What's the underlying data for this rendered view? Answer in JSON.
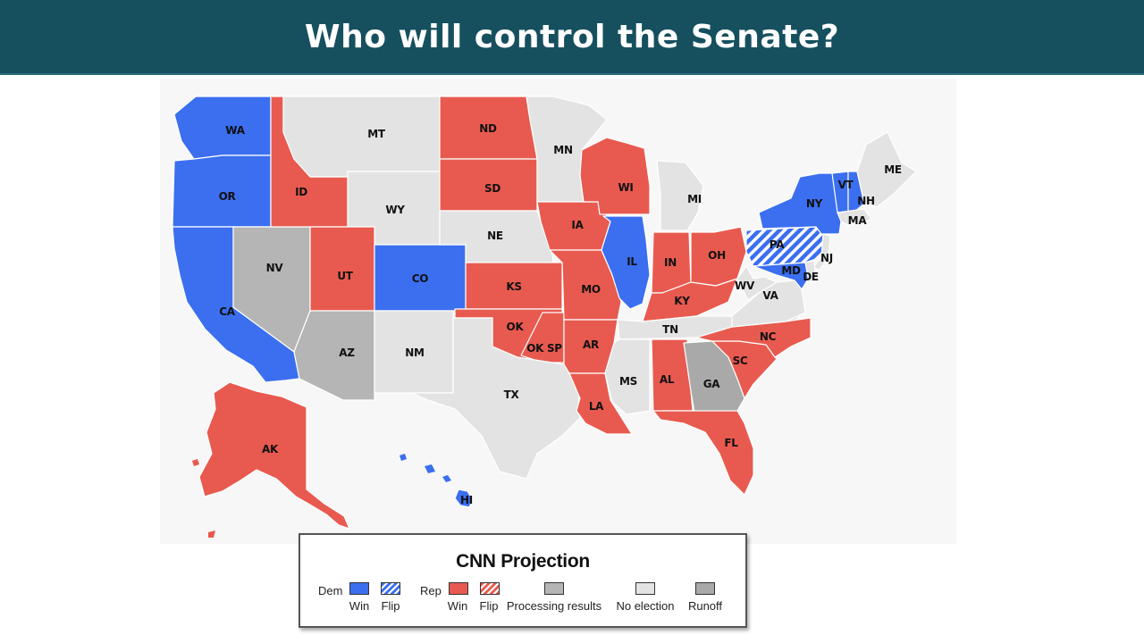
{
  "header": {
    "title": "Who will control the Senate?",
    "background": "#16505f"
  },
  "colors": {
    "dem_win": "#3b6ff0",
    "rep_win": "#e85a4f",
    "processing": "#b5b5b5",
    "no_election": "#e3e3e3",
    "runoff": "#a9a9a9"
  },
  "map": {
    "states": [
      {
        "code": "WA",
        "status": "dem_win"
      },
      {
        "code": "OR",
        "status": "dem_win"
      },
      {
        "code": "CA",
        "status": "dem_win"
      },
      {
        "code": "NV",
        "status": "processing"
      },
      {
        "code": "ID",
        "status": "rep_win"
      },
      {
        "code": "MT",
        "status": "no_election"
      },
      {
        "code": "WY",
        "status": "no_election"
      },
      {
        "code": "UT",
        "status": "rep_win"
      },
      {
        "code": "CO",
        "status": "dem_win"
      },
      {
        "code": "AZ",
        "status": "processing"
      },
      {
        "code": "NM",
        "status": "no_election"
      },
      {
        "code": "ND",
        "status": "rep_win"
      },
      {
        "code": "SD",
        "status": "rep_win"
      },
      {
        "code": "NE",
        "status": "no_election"
      },
      {
        "code": "KS",
        "status": "rep_win"
      },
      {
        "code": "OK",
        "status": "rep_win"
      },
      {
        "code": "OK SP",
        "status": "rep_win"
      },
      {
        "code": "TX",
        "status": "no_election"
      },
      {
        "code": "MN",
        "status": "no_election"
      },
      {
        "code": "IA",
        "status": "rep_win"
      },
      {
        "code": "MO",
        "status": "rep_win"
      },
      {
        "code": "AR",
        "status": "rep_win"
      },
      {
        "code": "LA",
        "status": "rep_win"
      },
      {
        "code": "WI",
        "status": "rep_win"
      },
      {
        "code": "IL",
        "status": "dem_win"
      },
      {
        "code": "MI",
        "status": "no_election"
      },
      {
        "code": "IN",
        "status": "rep_win"
      },
      {
        "code": "OH",
        "status": "rep_win"
      },
      {
        "code": "KY",
        "status": "rep_win"
      },
      {
        "code": "TN",
        "status": "no_election"
      },
      {
        "code": "MS",
        "status": "no_election"
      },
      {
        "code": "AL",
        "status": "rep_win"
      },
      {
        "code": "GA",
        "status": "runoff"
      },
      {
        "code": "FL",
        "status": "rep_win"
      },
      {
        "code": "SC",
        "status": "rep_win"
      },
      {
        "code": "NC",
        "status": "rep_win"
      },
      {
        "code": "VA",
        "status": "no_election"
      },
      {
        "code": "WV",
        "status": "no_election"
      },
      {
        "code": "PA",
        "status": "dem_flip"
      },
      {
        "code": "NY",
        "status": "dem_win"
      },
      {
        "code": "VT",
        "status": "dem_win"
      },
      {
        "code": "NH",
        "status": "dem_win"
      },
      {
        "code": "ME",
        "status": "no_election"
      },
      {
        "code": "MA",
        "status": "no_election"
      },
      {
        "code": "NJ",
        "status": "no_election"
      },
      {
        "code": "MD",
        "status": "dem_win"
      },
      {
        "code": "DE",
        "status": "no_election"
      },
      {
        "code": "AK",
        "status": "rep_win"
      },
      {
        "code": "HI",
        "status": "dem_win"
      }
    ]
  },
  "legend": {
    "title": "CNN Projection",
    "dem_label": "Dem",
    "rep_label": "Rep",
    "dem_win": "Win",
    "dem_flip": "Flip",
    "rep_win": "Win",
    "rep_flip": "Flip",
    "processing": "Processing results",
    "no_election": "No election",
    "runoff": "Runoff"
  }
}
